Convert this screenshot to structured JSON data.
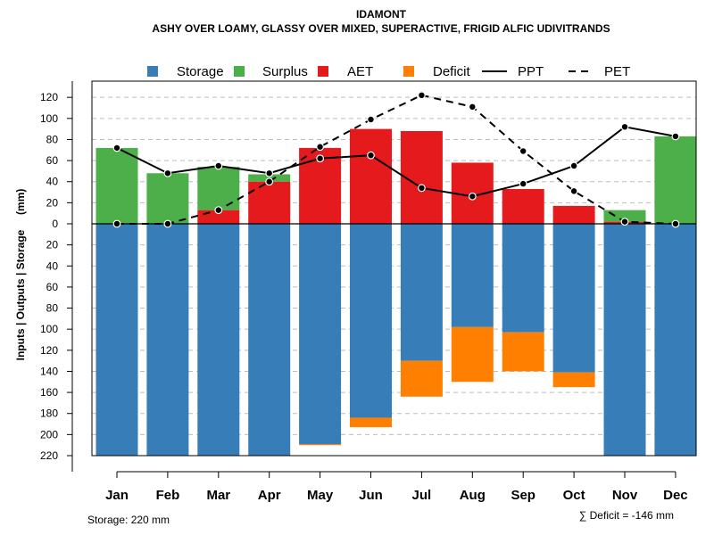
{
  "chart_data": {
    "type": "bar",
    "title": "IDAMONT",
    "subtitle": "ASHY OVER LOAMY, GLASSY OVER MIXED, SUPERACTIVE, FRIGID ALFIC UDIVITRANDS",
    "ylabel": "Inputs | Outputs | Storage     (mm)",
    "ylim": [
      -220,
      130
    ],
    "yticks": [
      120,
      100,
      80,
      60,
      40,
      20,
      0,
      -20,
      -40,
      -60,
      -80,
      -100,
      -120,
      -140,
      -160,
      -180,
      -200,
      -220
    ],
    "ytick_labels": [
      "120",
      "100",
      "80",
      "60",
      "40",
      "20",
      "0",
      "20",
      "40",
      "60",
      "80",
      "100",
      "120",
      "140",
      "160",
      "180",
      "200",
      "220"
    ],
    "categories": [
      "Jan",
      "Feb",
      "Mar",
      "Apr",
      "May",
      "Jun",
      "Jul",
      "Aug",
      "Sep",
      "Oct",
      "Nov",
      "Dec"
    ],
    "legend": [
      {
        "name": "Storage",
        "kind": "box",
        "color": "#377EB8"
      },
      {
        "name": "Surplus",
        "kind": "box",
        "color": "#4DAF4A"
      },
      {
        "name": "AET",
        "kind": "box",
        "color": "#E41A1C"
      },
      {
        "name": "Deficit",
        "kind": "box",
        "color": "#FF7F00"
      },
      {
        "name": "PPT",
        "kind": "solid",
        "color": "#000000"
      },
      {
        "name": "PET",
        "kind": "dashed",
        "color": "#000000"
      }
    ],
    "series": [
      {
        "name": "Storage",
        "color": "#377EB8",
        "values": [
          -220,
          -220,
          -220,
          -220,
          -209,
          -184,
          -130,
          -98,
          -103,
          -141,
          -220,
          -220
        ]
      },
      {
        "name": "Surplus",
        "color": "#4DAF4A",
        "values": [
          72,
          48,
          41,
          7,
          0,
          0,
          0,
          0,
          0,
          0,
          11,
          83
        ]
      },
      {
        "name": "AET",
        "color": "#E41A1C",
        "values": [
          0,
          0,
          13,
          40,
          72,
          90,
          88,
          58,
          33,
          17,
          2,
          0
        ]
      },
      {
        "name": "Deficit",
        "color": "#FF7F00",
        "values": [
          0,
          0,
          0,
          0,
          -1,
          -9,
          -34,
          -52,
          -37,
          -14,
          0,
          0
        ]
      },
      {
        "name": "PPT",
        "color": "#000000",
        "style": "solid",
        "values": [
          72,
          48,
          55,
          48,
          62,
          65,
          34,
          26,
          38,
          55,
          92,
          83
        ]
      },
      {
        "name": "PET",
        "color": "#000000",
        "style": "dashed",
        "values": [
          0,
          0,
          13,
          40,
          73,
          99,
          122,
          111,
          69,
          31,
          2,
          0
        ]
      }
    ],
    "notes": {
      "storage": "Storage: 220 mm",
      "deficit": "∑ Deficit = -146 mm"
    }
  }
}
